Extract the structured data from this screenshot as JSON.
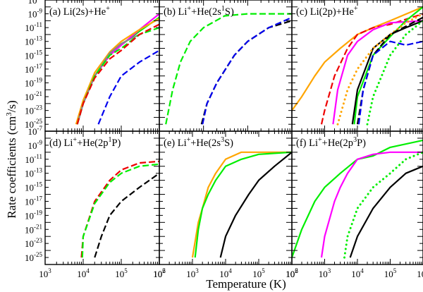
{
  "figure": {
    "ylabel": "Rate coefficients (cm",
    "ylabel_sup": "3",
    "ylabel_tail": "/s)",
    "xlabel": "Temperature (K)"
  },
  "chart_data": [
    {
      "type": "line",
      "panel": "a",
      "title": "(a) Li(2s)+He",
      "title_sup": "+",
      "xscale": "log",
      "yscale": "log",
      "xlim": [
        1000,
        1000000
      ],
      "ylim": [
        1e-26,
        1e-07
      ],
      "series": [
        {
          "color": "#00ee00",
          "dash": "solid",
          "x": [
            7000,
            10000,
            20000,
            50000,
            100000,
            300000,
            1000000
          ],
          "y": [
            1e-25,
            1e-22,
            1e-18,
            1e-15,
            3e-14,
            3e-12,
            3e-10
          ]
        },
        {
          "color": "#ff00ff",
          "dash": "solid",
          "x": [
            7000,
            10000,
            20000,
            50000,
            100000,
            300000,
            1000000
          ],
          "y": [
            1e-25,
            1e-22,
            1e-18,
            1e-15,
            3e-14,
            5e-12,
            1e-09
          ]
        },
        {
          "color": "#ffa500",
          "dash": "solid",
          "x": [
            6500,
            10000,
            20000,
            50000,
            100000,
            300000,
            1000000
          ],
          "y": [
            1e-25,
            3e-22,
            3e-18,
            3e-15,
            1e-13,
            5e-12,
            2e-10
          ]
        },
        {
          "color": "#888888",
          "dash": "solid",
          "x": [
            7000,
            10000,
            20000,
            50000,
            100000,
            300000
          ],
          "y": [
            1e-25,
            1e-22,
            1e-18,
            2e-15,
            5e-14,
            1e-12
          ]
        },
        {
          "color": "#00ee00",
          "dash": "dashed",
          "x": [
            7000,
            10000,
            20000,
            50000,
            100000,
            300000,
            1000000
          ],
          "y": [
            1e-25,
            1e-22,
            1e-18,
            1e-15,
            1e-14,
            1e-12,
            1e-11
          ]
        },
        {
          "color": "#ee0000",
          "dash": "dashed",
          "x": [
            7000,
            10000,
            20000,
            50000,
            100000,
            300000,
            1000000
          ],
          "y": [
            1e-25,
            1e-22,
            5e-19,
            3e-16,
            5e-15,
            1e-12,
            3e-11
          ]
        },
        {
          "color": "#0000ee",
          "dash": "dashed",
          "x": [
            25000,
            50000,
            100000,
            300000,
            1000000
          ],
          "y": [
            1e-25,
            1e-21,
            1e-18,
            1e-16,
            5e-15
          ]
        }
      ]
    },
    {
      "type": "line",
      "panel": "b",
      "title": "(b) Li",
      "title_sup": "+",
      "title_tail": "+He(2s",
      "title_sup2": "1",
      "title_tail2": "S)",
      "xscale": "log",
      "yscale": "log",
      "xlim": [
        1000,
        1000000
      ],
      "ylim": [
        1e-26,
        1e-07
      ],
      "series": [
        {
          "color": "#00ee00",
          "dash": "dashed",
          "x": [
            1400,
            2000,
            3000,
            5000,
            10000,
            30000,
            100000,
            300000,
            1000000
          ],
          "y": [
            1e-25,
            1e-20,
            1e-16,
            1e-13,
            1e-11,
            5e-10,
            1e-09,
            1e-09,
            1e-09
          ]
        },
        {
          "color": "#000000",
          "dash": "dashed",
          "x": [
            9000,
            12000,
            20000,
            50000,
            100000,
            300000,
            1000000
          ],
          "y": [
            1e-25,
            1e-22,
            1e-19,
            1e-15,
            1e-13,
            1e-11,
            1e-10
          ]
        },
        {
          "color": "#0000ee",
          "dash": "dashed",
          "x": [
            9500,
            12000,
            20000,
            50000,
            100000,
            300000,
            1000000
          ],
          "y": [
            1e-25,
            1e-22,
            1e-19,
            1e-15,
            1e-13,
            1e-11,
            3e-10
          ]
        }
      ]
    },
    {
      "type": "line",
      "panel": "c",
      "title": "(c) Li(2p)+He",
      "title_sup": "+",
      "xscale": "log",
      "yscale": "log",
      "xlim": [
        100,
        1000000
      ],
      "ylim": [
        1e-26,
        1e-07
      ],
      "series": [
        {
          "color": "#ffa500",
          "dash": "solid",
          "x": [
            100,
            200,
            500,
            1000,
            3000,
            10000,
            30000,
            100000,
            1000000
          ],
          "y": [
            1e-23,
            1e-21,
            1e-18,
            1e-16,
            1e-14,
            1e-12,
            1e-11,
            1e-10,
            1e-08
          ]
        },
        {
          "color": "#ee0000",
          "dash": "dashed",
          "x": [
            800,
            1000,
            2000,
            5000,
            10000,
            30000,
            100000,
            1000000
          ],
          "y": [
            1e-25,
            1e-23,
            1e-18,
            1e-14,
            1e-12,
            1e-11,
            3e-11,
            1e-09
          ]
        },
        {
          "color": "#ff00ff",
          "dash": "solid",
          "x": [
            1800,
            2500,
            5000,
            10000,
            30000,
            100000,
            1000000
          ],
          "y": [
            1e-25,
            1e-20,
            1e-15,
            1e-13,
            5e-12,
            5e-11,
            1e-10
          ]
        },
        {
          "color": "#00ee00",
          "dash": "solid",
          "x": [
            8000,
            10000,
            30000,
            100000,
            300000,
            1000000
          ],
          "y": [
            1e-25,
            1e-21,
            1e-15,
            5e-13,
            1e-10,
            1e-08
          ]
        },
        {
          "color": "#000000",
          "dash": "solid",
          "x": [
            7000,
            10000,
            30000,
            100000,
            300000,
            1000000
          ],
          "y": [
            1e-25,
            1e-20,
            1e-14,
            1e-12,
            1e-11,
            1e-10
          ]
        },
        {
          "color": "#ffa500",
          "dash": "dotted",
          "x": [
            2500,
            5000,
            10000,
            30000,
            100000,
            300000,
            1000000
          ],
          "y": [
            1e-25,
            1e-20,
            1e-17,
            1e-14,
            1e-12,
            5e-11,
            1e-09
          ]
        },
        {
          "color": "#000000",
          "dash": "dashed",
          "x": [
            10000,
            15000,
            30000,
            100000,
            1000000
          ],
          "y": [
            1e-25,
            1e-20,
            1e-15,
            1e-12,
            3e-10
          ]
        },
        {
          "color": "#0000ee",
          "dash": "dashed",
          "x": [
            11000,
            15000,
            30000,
            100000,
            300000,
            1000000
          ],
          "y": [
            1e-25,
            1e-20,
            1e-15,
            1e-13,
            3e-14,
            1e-13
          ]
        },
        {
          "color": "#00ee00",
          "dash": "dotted",
          "x": [
            20000,
            30000,
            100000,
            300000,
            1000000
          ],
          "y": [
            1e-25,
            1e-21,
            1e-15,
            1e-12,
            1e-10
          ]
        }
      ]
    },
    {
      "type": "line",
      "panel": "d",
      "title": "(d) Li",
      "title_sup": "+",
      "title_tail": "+He(2p",
      "title_sup2": "1",
      "title_tail2": "P)",
      "xscale": "log",
      "yscale": "log",
      "xlim": [
        1000,
        1000000
      ],
      "ylim": [
        1e-26,
        1e-07
      ],
      "series": [
        {
          "color": "#ee0000",
          "dash": "dashed",
          "x": [
            9000,
            10000,
            20000,
            50000,
            100000,
            300000,
            1000000
          ],
          "y": [
            1e-25,
            1e-22,
            1e-17,
            1e-14,
            3e-13,
            3e-12,
            5e-12
          ]
        },
        {
          "color": "#00ee00",
          "dash": "dashed",
          "x": [
            9500,
            10000,
            20000,
            50000,
            100000,
            300000,
            1000000
          ],
          "y": [
            1e-25,
            1e-22,
            5e-18,
            5e-15,
            1e-13,
            1e-12,
            2e-12
          ]
        },
        {
          "color": "#000000",
          "dash": "dashed",
          "x": [
            20000,
            30000,
            50000,
            100000,
            300000,
            1000000
          ],
          "y": [
            1e-25,
            1e-22,
            1e-19,
            1e-17,
            1e-15,
            1e-13
          ]
        }
      ]
    },
    {
      "type": "line",
      "panel": "e",
      "title": "(e) Li",
      "title_sup": "+",
      "title_tail": "+He(2s",
      "title_sup2": "3",
      "title_tail2": "S)",
      "xscale": "log",
      "yscale": "log",
      "xlim": [
        100,
        1000000
      ],
      "ylim": [
        1e-26,
        1e-07
      ],
      "series": [
        {
          "color": "#ffa500",
          "dash": "solid",
          "x": [
            1000,
            1500,
            2000,
            3000,
            5000,
            10000,
            30000,
            100000,
            1000000
          ],
          "y": [
            1e-25,
            1e-20,
            1e-18,
            1e-15,
            1e-13,
            1e-11,
            1e-10,
            1e-10,
            1e-10
          ]
        },
        {
          "color": "#00ee00",
          "dash": "solid",
          "x": [
            1200,
            1500,
            2000,
            3000,
            5000,
            10000,
            30000,
            100000,
            1000000
          ],
          "y": [
            1e-25,
            1e-21,
            1e-18,
            1e-16,
            1e-14,
            1e-12,
            1e-11,
            5e-11,
            1e-10
          ]
        },
        {
          "color": "#000000",
          "dash": "solid",
          "x": [
            7000,
            10000,
            20000,
            50000,
            100000,
            300000,
            1000000
          ],
          "y": [
            1e-25,
            1e-22,
            1e-19,
            1e-16,
            1e-14,
            1e-12,
            1e-10
          ]
        }
      ]
    },
    {
      "type": "line",
      "panel": "f",
      "title": "(f) Li",
      "title_sup": "+",
      "title_tail": "+He(2p",
      "title_sup2": "3",
      "title_tail2": "P)",
      "xscale": "log",
      "yscale": "log",
      "xlim": [
        100,
        1000000
      ],
      "ylim": [
        1e-26,
        1e-07
      ],
      "series": [
        {
          "color": "#00ee00",
          "dash": "solid",
          "x": [
            100,
            200,
            500,
            1000,
            3000,
            10000,
            30000,
            100000,
            1000000
          ],
          "y": [
            1e-25,
            1e-21,
            1e-17,
            1e-15,
            1e-13,
            1e-11,
            3e-11,
            5e-10,
            5e-09
          ]
        },
        {
          "color": "#ff00ff",
          "dash": "solid",
          "x": [
            800,
            1000,
            2000,
            3000,
            5000,
            10000,
            30000,
            100000,
            1000000
          ],
          "y": [
            1e-25,
            1e-22,
            1e-17,
            1e-15,
            1e-13,
            1e-11,
            5e-11,
            1e-10,
            1e-10
          ]
        },
        {
          "color": "#00ee00",
          "dash": "dotted",
          "x": [
            4000,
            5000,
            10000,
            30000,
            100000,
            300000,
            1000000
          ],
          "y": [
            1e-25,
            1e-22,
            1e-18,
            1e-15,
            1e-13,
            1e-11,
            1e-10
          ]
        },
        {
          "color": "#000000",
          "dash": "solid",
          "x": [
            6000,
            10000,
            30000,
            100000,
            300000,
            1000000
          ],
          "y": [
            1e-25,
            1e-22,
            1e-18,
            1e-15,
            1e-13,
            1e-12
          ]
        }
      ]
    }
  ]
}
